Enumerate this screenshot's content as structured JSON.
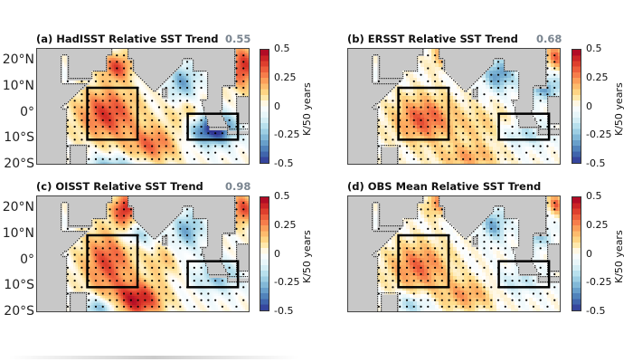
{
  "chart_data": [
    {
      "type": "heatmap",
      "panel": "a",
      "title": "(a) HadISST Relative SST Trend",
      "corr": "0.55",
      "pattern": "hadisst",
      "east_box_strength": -0.5,
      "west_box_strength": 0.4
    },
    {
      "type": "heatmap",
      "panel": "b",
      "title": "(b) ERSST Relative SST Trend",
      "corr": "0.68",
      "pattern": "ersst",
      "east_box_strength": -0.15,
      "west_box_strength": 0.3
    },
    {
      "type": "heatmap",
      "panel": "c",
      "title": "(c) OISST Relative SST Trend",
      "corr": "0.98",
      "pattern": "oisst",
      "east_box_strength": -0.2,
      "west_box_strength": 0.35
    },
    {
      "type": "heatmap",
      "panel": "d",
      "title": "(d) OBS Mean Relative SST Trend",
      "corr": "",
      "pattern": "obs",
      "east_box_strength": -0.15,
      "west_box_strength": 0.3
    }
  ],
  "axes": {
    "y_ticks": [
      "20°N",
      "10°N",
      "0°",
      "10°S",
      "20°S"
    ],
    "y_values": [
      20,
      10,
      0,
      -10,
      -20
    ],
    "lat_range": [
      -20,
      25
    ],
    "lon_range": [
      30,
      115
    ]
  },
  "colorbar": {
    "ticks": [
      "0.5",
      "0.25",
      "0",
      "-0.25",
      "-0.5"
    ],
    "range": [
      -0.5,
      0.5
    ],
    "label": "K/50 years",
    "colors": [
      "#a50026",
      "#d73027",
      "#f46d43",
      "#fdae61",
      "#fee090",
      "#ffffff",
      "#e0f3f8",
      "#abd9e9",
      "#74add1",
      "#4575b4",
      "#313695"
    ]
  },
  "boxes": [
    {
      "name": "west",
      "lon": [
        50,
        70
      ],
      "lat": [
        -10,
        10
      ]
    },
    {
      "name": "east",
      "lon": [
        90,
        110
      ],
      "lat": [
        -10,
        0
      ]
    }
  ]
}
